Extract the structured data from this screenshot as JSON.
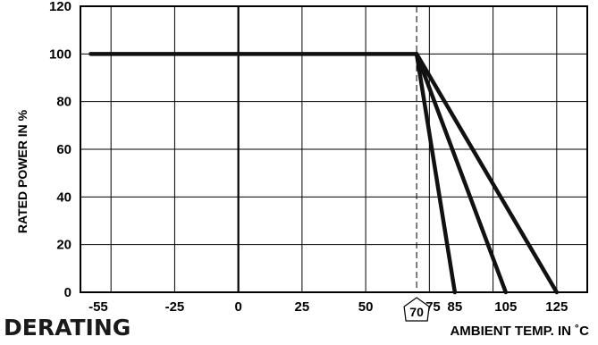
{
  "chart_data": {
    "type": "line",
    "title": "DERATING",
    "xlabel": "AMBIENT TEMP. IN ˚C",
    "ylabel": "RATED POWER IN %",
    "xlim": [
      -62,
      137
    ],
    "ylim": [
      0,
      120
    ],
    "x_ticks": [
      -55,
      -25,
      0,
      25,
      50,
      75,
      85,
      105,
      125
    ],
    "y_ticks": [
      0,
      20,
      40,
      60,
      80,
      100,
      120
    ],
    "x_gridlines": [
      -50,
      -25,
      0,
      25,
      50,
      75,
      100,
      125
    ],
    "grid": true,
    "marker": {
      "x": 70,
      "label": "70"
    },
    "series": [
      {
        "x": [
          -58,
          70
        ],
        "y": [
          100,
          100
        ]
      },
      {
        "x": [
          70,
          85
        ],
        "y": [
          100,
          0
        ]
      },
      {
        "x": [
          70,
          105
        ],
        "y": [
          100,
          0
        ]
      },
      {
        "x": [
          70,
          125
        ],
        "y": [
          100,
          0
        ]
      }
    ]
  }
}
